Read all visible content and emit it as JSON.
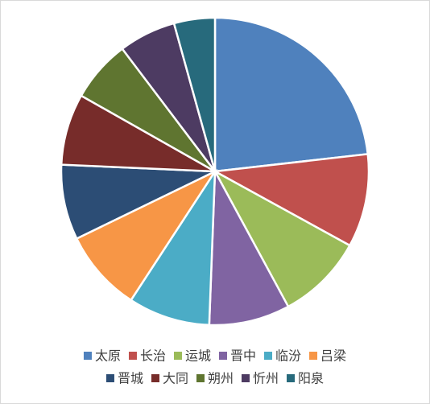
{
  "chart_data": {
    "type": "pie",
    "categories": [
      "太原",
      "长治",
      "运城",
      "晋中",
      "临汾",
      "吕梁",
      "晋城",
      "大同",
      "朔州",
      "忻州",
      "阳泉"
    ],
    "values": [
      23.2,
      9.8,
      9.1,
      8.5,
      8.6,
      8.6,
      7.9,
      7.5,
      6.5,
      6.0,
      4.3
    ],
    "colors": [
      "#4f81bd",
      "#c0504d",
      "#9bbb59",
      "#8064a2",
      "#4bacc6",
      "#f79646",
      "#2c4d75",
      "#772c2a",
      "#5f7530",
      "#4d3b62",
      "#276a7c"
    ],
    "legend": "bottom"
  }
}
